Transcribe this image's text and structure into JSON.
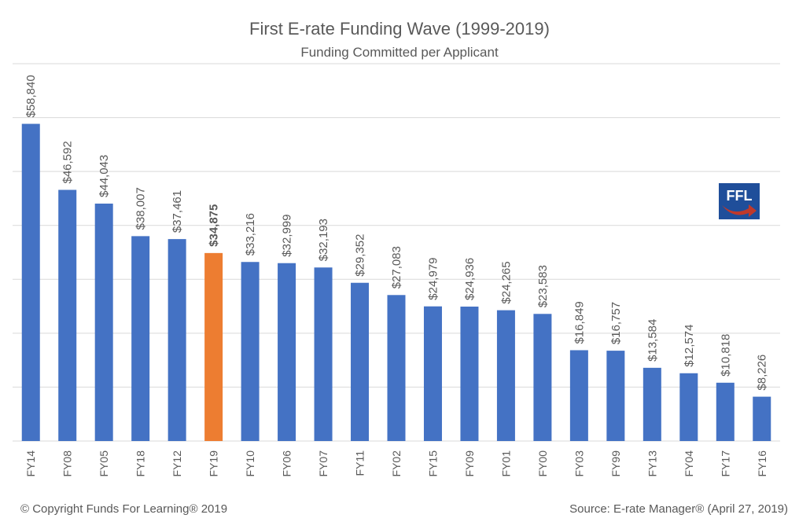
{
  "chart_data": {
    "type": "bar",
    "title": "First E-rate Funding Wave (1999-2019)",
    "subtitle": "Funding Committed per Applicant",
    "xlabel": "",
    "ylabel": "",
    "ylim": [
      0,
      70000
    ],
    "grid": true,
    "y_gridline_step": 10000,
    "y_tick_labels_shown": false,
    "highlight_category": "FY19",
    "colors": {
      "bar": "#4472C4",
      "highlight": "#ED7D31",
      "gridline": "#D9D9D9",
      "text": "#595959"
    },
    "categories": [
      "FY14",
      "FY08",
      "FY05",
      "FY18",
      "FY12",
      "FY19",
      "FY10",
      "FY06",
      "FY07",
      "FY11",
      "FY02",
      "FY15",
      "FY09",
      "FY01",
      "FY00",
      "FY03",
      "FY99",
      "FY13",
      "FY04",
      "FY17",
      "FY16"
    ],
    "values": [
      58840,
      46592,
      44043,
      38007,
      37461,
      34875,
      33216,
      32999,
      32193,
      29352,
      27083,
      24979,
      24936,
      24265,
      23583,
      16849,
      16757,
      13584,
      12574,
      10818,
      8226
    ],
    "data_labels": [
      "$58,840",
      "$46,592",
      "$44,043",
      "$38,007",
      "$37,461",
      "$34,875",
      "$33,216",
      "$32,999",
      "$32,193",
      "$29,352",
      "$27,083",
      "$24,979",
      "$24,936",
      "$24,265",
      "$23,583",
      "$16,849",
      "$16,757",
      "$13,584",
      "$12,574",
      "$10,818",
      "$8,226"
    ]
  },
  "footer": {
    "copyright": "© Copyright Funds For Learning® 2019",
    "source": "Source: E-rate Manager® (April 27, 2019)"
  },
  "logo": {
    "text": "FFL",
    "icon": "ffl-logo-icon",
    "background": "#1F4E9A",
    "arrow_color": "#C0392B"
  }
}
